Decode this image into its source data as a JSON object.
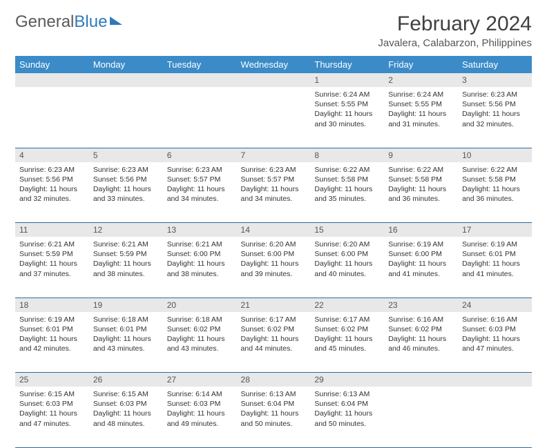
{
  "logo": {
    "text1": "General",
    "text2": "Blue"
  },
  "title": "February 2024",
  "location": "Javalera, Calabarzon, Philippines",
  "colors": {
    "header_bg": "#3b8bc8",
    "header_text": "#ffffff",
    "daynum_bg": "#e8e8e8",
    "border": "#2b6a9e",
    "logo_gray": "#5a5a5a",
    "logo_blue": "#2b7bbf"
  },
  "weekdays": [
    "Sunday",
    "Monday",
    "Tuesday",
    "Wednesday",
    "Thursday",
    "Friday",
    "Saturday"
  ],
  "weeks": [
    {
      "nums": [
        "",
        "",
        "",
        "",
        "1",
        "2",
        "3"
      ],
      "cells": [
        null,
        null,
        null,
        null,
        {
          "sr": "Sunrise: 6:24 AM",
          "ss": "Sunset: 5:55 PM",
          "dl": "Daylight: 11 hours and 30 minutes."
        },
        {
          "sr": "Sunrise: 6:24 AM",
          "ss": "Sunset: 5:55 PM",
          "dl": "Daylight: 11 hours and 31 minutes."
        },
        {
          "sr": "Sunrise: 6:23 AM",
          "ss": "Sunset: 5:56 PM",
          "dl": "Daylight: 11 hours and 32 minutes."
        }
      ]
    },
    {
      "nums": [
        "4",
        "5",
        "6",
        "7",
        "8",
        "9",
        "10"
      ],
      "cells": [
        {
          "sr": "Sunrise: 6:23 AM",
          "ss": "Sunset: 5:56 PM",
          "dl": "Daylight: 11 hours and 32 minutes."
        },
        {
          "sr": "Sunrise: 6:23 AM",
          "ss": "Sunset: 5:56 PM",
          "dl": "Daylight: 11 hours and 33 minutes."
        },
        {
          "sr": "Sunrise: 6:23 AM",
          "ss": "Sunset: 5:57 PM",
          "dl": "Daylight: 11 hours and 34 minutes."
        },
        {
          "sr": "Sunrise: 6:23 AM",
          "ss": "Sunset: 5:57 PM",
          "dl": "Daylight: 11 hours and 34 minutes."
        },
        {
          "sr": "Sunrise: 6:22 AM",
          "ss": "Sunset: 5:58 PM",
          "dl": "Daylight: 11 hours and 35 minutes."
        },
        {
          "sr": "Sunrise: 6:22 AM",
          "ss": "Sunset: 5:58 PM",
          "dl": "Daylight: 11 hours and 36 minutes."
        },
        {
          "sr": "Sunrise: 6:22 AM",
          "ss": "Sunset: 5:58 PM",
          "dl": "Daylight: 11 hours and 36 minutes."
        }
      ]
    },
    {
      "nums": [
        "11",
        "12",
        "13",
        "14",
        "15",
        "16",
        "17"
      ],
      "cells": [
        {
          "sr": "Sunrise: 6:21 AM",
          "ss": "Sunset: 5:59 PM",
          "dl": "Daylight: 11 hours and 37 minutes."
        },
        {
          "sr": "Sunrise: 6:21 AM",
          "ss": "Sunset: 5:59 PM",
          "dl": "Daylight: 11 hours and 38 minutes."
        },
        {
          "sr": "Sunrise: 6:21 AM",
          "ss": "Sunset: 6:00 PM",
          "dl": "Daylight: 11 hours and 38 minutes."
        },
        {
          "sr": "Sunrise: 6:20 AM",
          "ss": "Sunset: 6:00 PM",
          "dl": "Daylight: 11 hours and 39 minutes."
        },
        {
          "sr": "Sunrise: 6:20 AM",
          "ss": "Sunset: 6:00 PM",
          "dl": "Daylight: 11 hours and 40 minutes."
        },
        {
          "sr": "Sunrise: 6:19 AM",
          "ss": "Sunset: 6:00 PM",
          "dl": "Daylight: 11 hours and 41 minutes."
        },
        {
          "sr": "Sunrise: 6:19 AM",
          "ss": "Sunset: 6:01 PM",
          "dl": "Daylight: 11 hours and 41 minutes."
        }
      ]
    },
    {
      "nums": [
        "18",
        "19",
        "20",
        "21",
        "22",
        "23",
        "24"
      ],
      "cells": [
        {
          "sr": "Sunrise: 6:19 AM",
          "ss": "Sunset: 6:01 PM",
          "dl": "Daylight: 11 hours and 42 minutes."
        },
        {
          "sr": "Sunrise: 6:18 AM",
          "ss": "Sunset: 6:01 PM",
          "dl": "Daylight: 11 hours and 43 minutes."
        },
        {
          "sr": "Sunrise: 6:18 AM",
          "ss": "Sunset: 6:02 PM",
          "dl": "Daylight: 11 hours and 43 minutes."
        },
        {
          "sr": "Sunrise: 6:17 AM",
          "ss": "Sunset: 6:02 PM",
          "dl": "Daylight: 11 hours and 44 minutes."
        },
        {
          "sr": "Sunrise: 6:17 AM",
          "ss": "Sunset: 6:02 PM",
          "dl": "Daylight: 11 hours and 45 minutes."
        },
        {
          "sr": "Sunrise: 6:16 AM",
          "ss": "Sunset: 6:02 PM",
          "dl": "Daylight: 11 hours and 46 minutes."
        },
        {
          "sr": "Sunrise: 6:16 AM",
          "ss": "Sunset: 6:03 PM",
          "dl": "Daylight: 11 hours and 47 minutes."
        }
      ]
    },
    {
      "nums": [
        "25",
        "26",
        "27",
        "28",
        "29",
        "",
        ""
      ],
      "cells": [
        {
          "sr": "Sunrise: 6:15 AM",
          "ss": "Sunset: 6:03 PM",
          "dl": "Daylight: 11 hours and 47 minutes."
        },
        {
          "sr": "Sunrise: 6:15 AM",
          "ss": "Sunset: 6:03 PM",
          "dl": "Daylight: 11 hours and 48 minutes."
        },
        {
          "sr": "Sunrise: 6:14 AM",
          "ss": "Sunset: 6:03 PM",
          "dl": "Daylight: 11 hours and 49 minutes."
        },
        {
          "sr": "Sunrise: 6:13 AM",
          "ss": "Sunset: 6:04 PM",
          "dl": "Daylight: 11 hours and 50 minutes."
        },
        {
          "sr": "Sunrise: 6:13 AM",
          "ss": "Sunset: 6:04 PM",
          "dl": "Daylight: 11 hours and 50 minutes."
        },
        null,
        null
      ]
    }
  ]
}
